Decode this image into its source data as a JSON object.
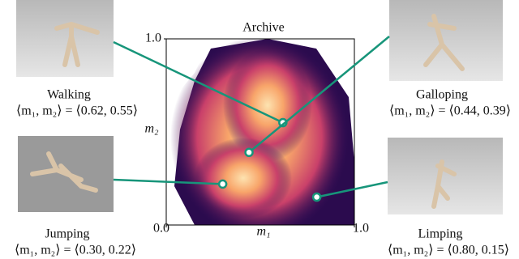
{
  "archive": {
    "title": "Archive",
    "x_label": "m₁",
    "y_label": "m₂",
    "xlim": [
      0,
      1
    ],
    "ylim": [
      0,
      1
    ],
    "xticks": [
      {
        "value": 0,
        "label": "0.0"
      },
      {
        "value": 1,
        "label": "1.0"
      }
    ],
    "yticks": [
      {
        "value": 1,
        "label": "1.0"
      }
    ]
  },
  "behaviors": [
    {
      "name": "Walking",
      "label": "⟨m₁, m₂⟩ = ⟨0.62, 0.55⟩",
      "m1": 0.62,
      "m2": 0.55
    },
    {
      "name": "Galloping",
      "label": "⟨m₁, m₂⟩ = ⟨0.44, 0.39⟩",
      "m1": 0.44,
      "m2": 0.39
    },
    {
      "name": "Jumping",
      "label": "⟨m₁, m₂⟩ = ⟨0.30, 0.22⟩",
      "m1": 0.3,
      "m2": 0.22
    },
    {
      "name": "Limping",
      "label": "⟨m₁, m₂⟩ = ⟨0.80, 0.15⟩",
      "m1": 0.8,
      "m2": 0.15
    }
  ]
}
